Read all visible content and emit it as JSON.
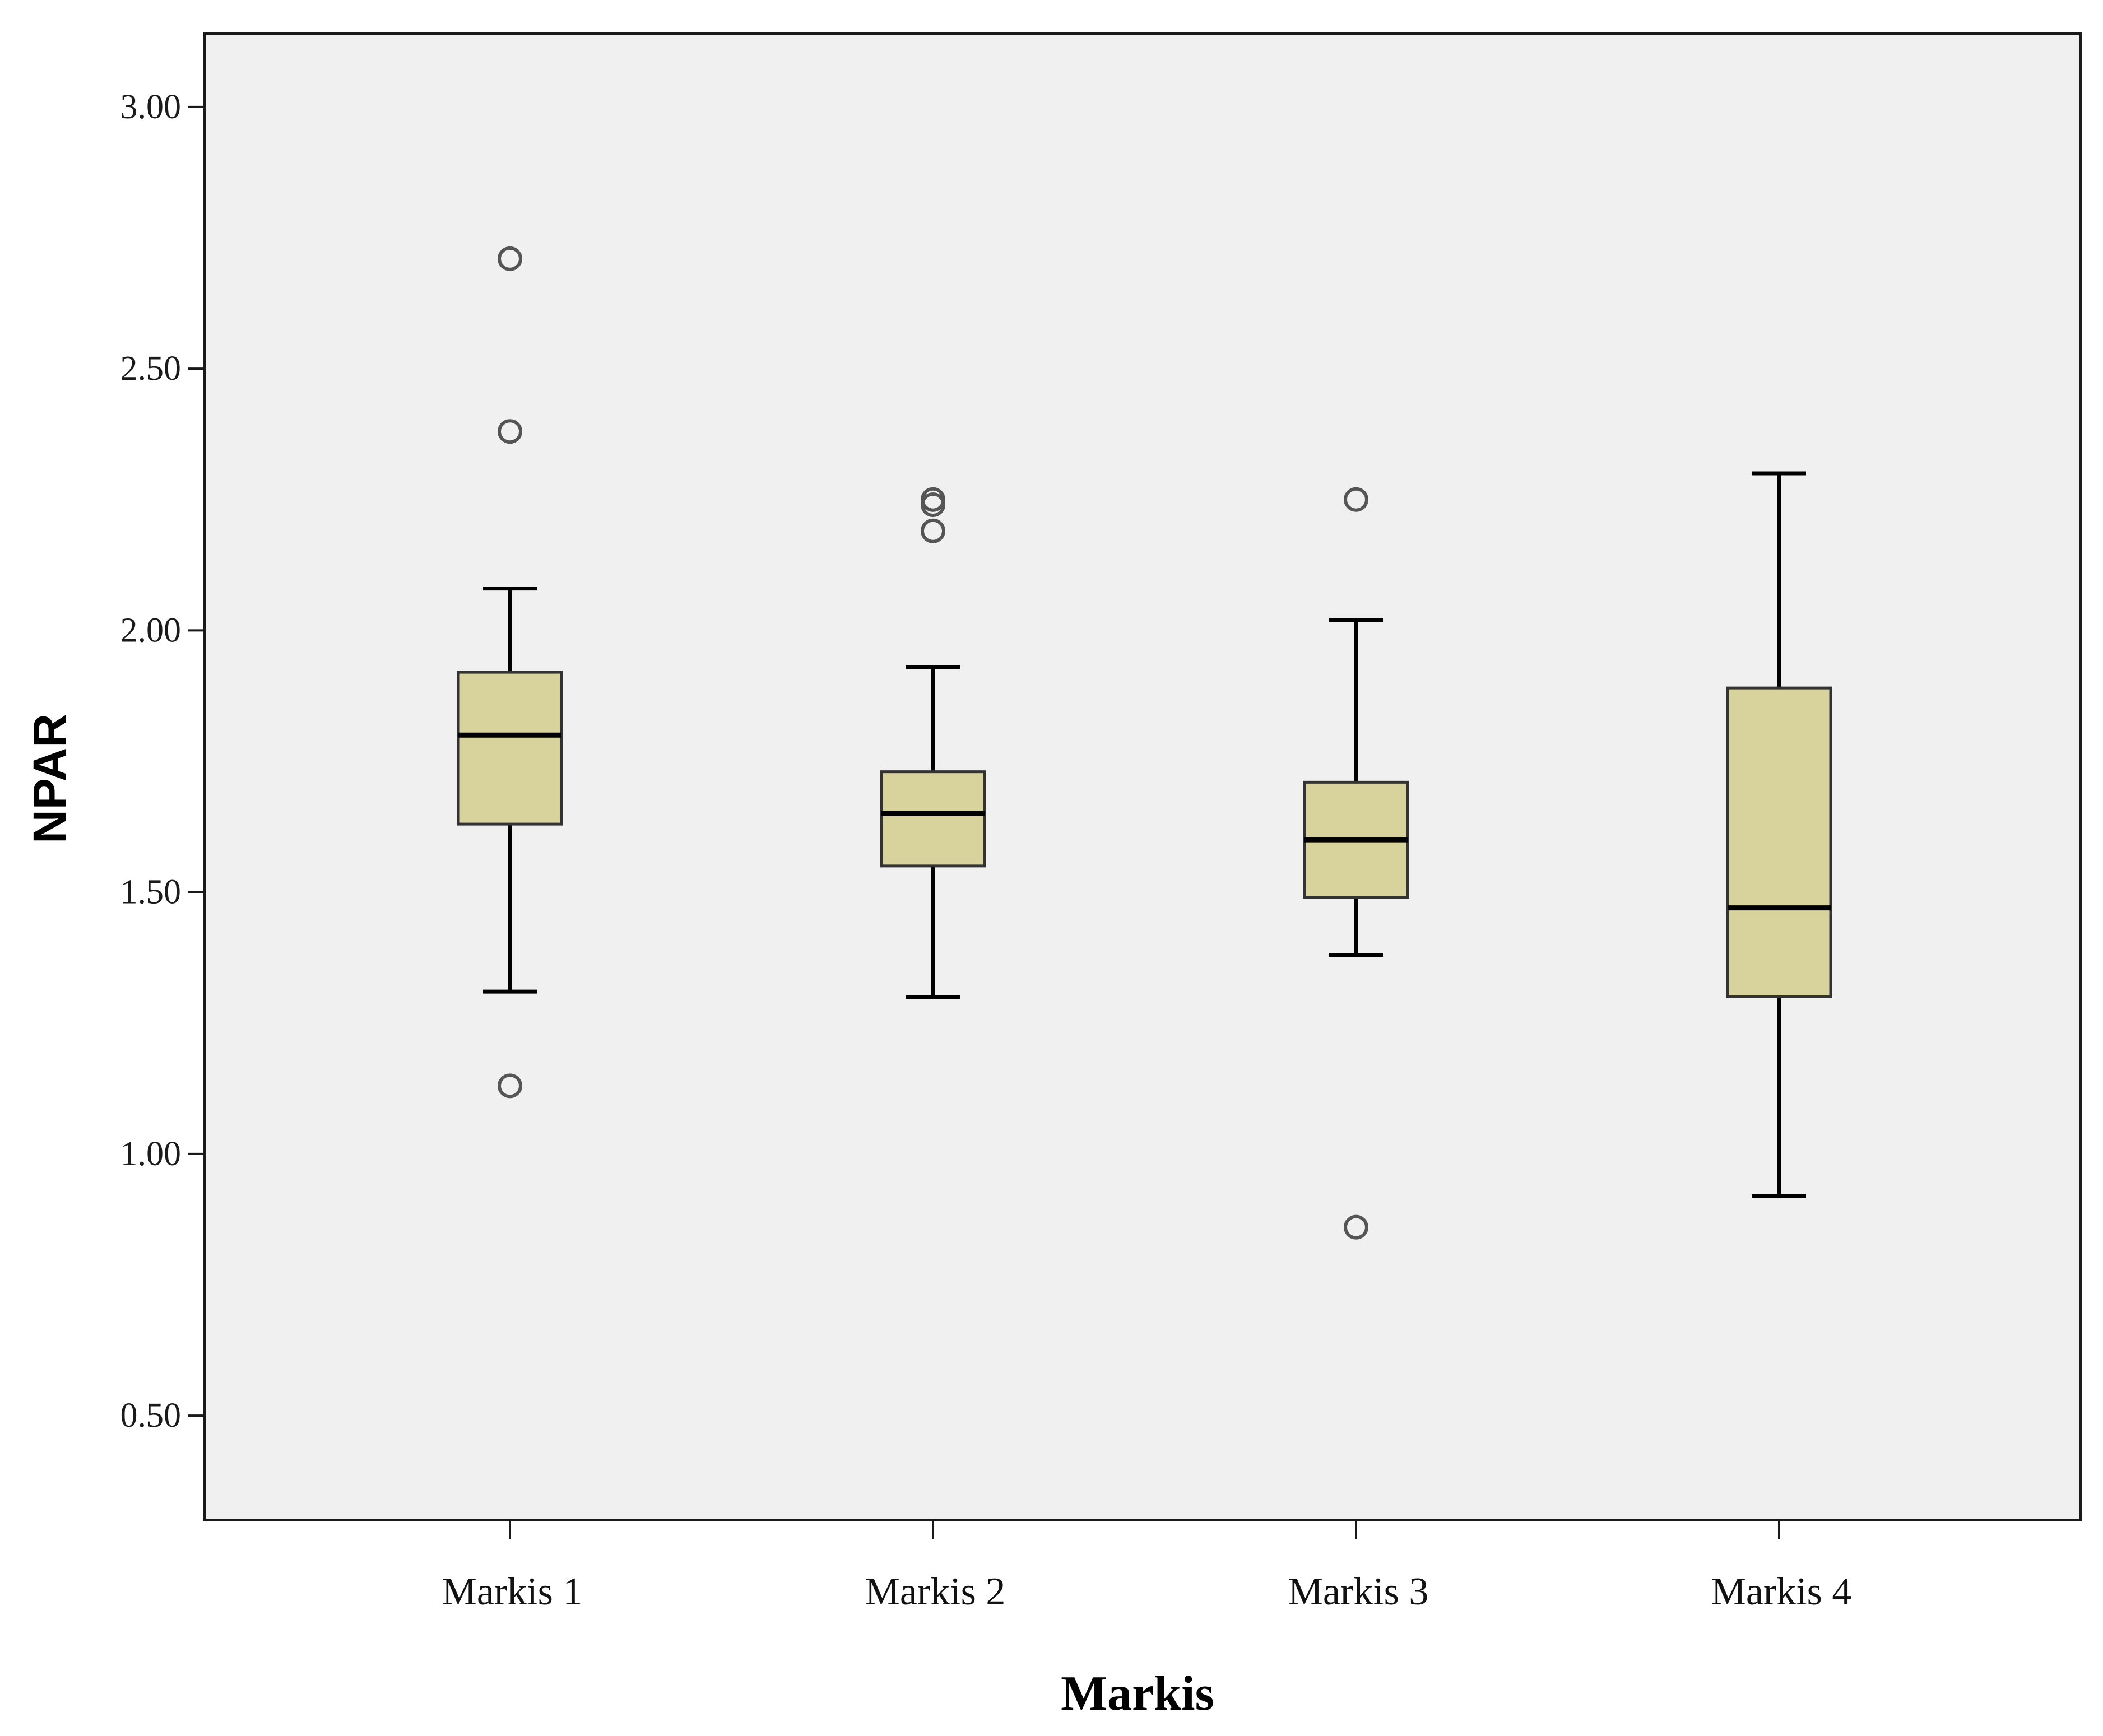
{
  "chart_data": {
    "type": "box",
    "xlabel": "Markis",
    "ylabel": "NPAR",
    "ylim": [
      0.3,
      3.14
    ],
    "yticks": [
      "0.50",
      "1.00",
      "1.50",
      "2.00",
      "2.50",
      "3.00"
    ],
    "ytick_values": [
      0.5,
      1.0,
      1.5,
      2.0,
      2.5,
      3.0
    ],
    "categories": [
      "Markis 1",
      "Markis 2",
      "Markis 3",
      "Markis 4"
    ],
    "boxes": [
      {
        "category": "Markis 1",
        "whisker_low": 1.31,
        "q1": 1.63,
        "median": 1.8,
        "q3": 1.92,
        "whisker_high": 2.08,
        "outliers": [
          2.71,
          2.38,
          1.13
        ]
      },
      {
        "category": "Markis 2",
        "whisker_low": 1.3,
        "q1": 1.55,
        "median": 1.65,
        "q3": 1.73,
        "whisker_high": 1.93,
        "outliers": [
          2.25,
          2.24,
          2.19
        ]
      },
      {
        "category": "Markis 3",
        "whisker_low": 1.38,
        "q1": 1.49,
        "median": 1.6,
        "q3": 1.71,
        "whisker_high": 2.02,
        "outliers": [
          2.25,
          0.86
        ]
      },
      {
        "category": "Markis 4",
        "whisker_low": 0.92,
        "q1": 1.3,
        "median": 1.47,
        "q3": 1.89,
        "whisker_high": 2.3,
        "outliers": []
      }
    ],
    "grid": false,
    "legend": "none",
    "colors": {
      "box_fill": "#d8d29c",
      "plot_bg": "#f0f0f0",
      "line": "#000000",
      "outlier_stroke": "#555555"
    }
  }
}
